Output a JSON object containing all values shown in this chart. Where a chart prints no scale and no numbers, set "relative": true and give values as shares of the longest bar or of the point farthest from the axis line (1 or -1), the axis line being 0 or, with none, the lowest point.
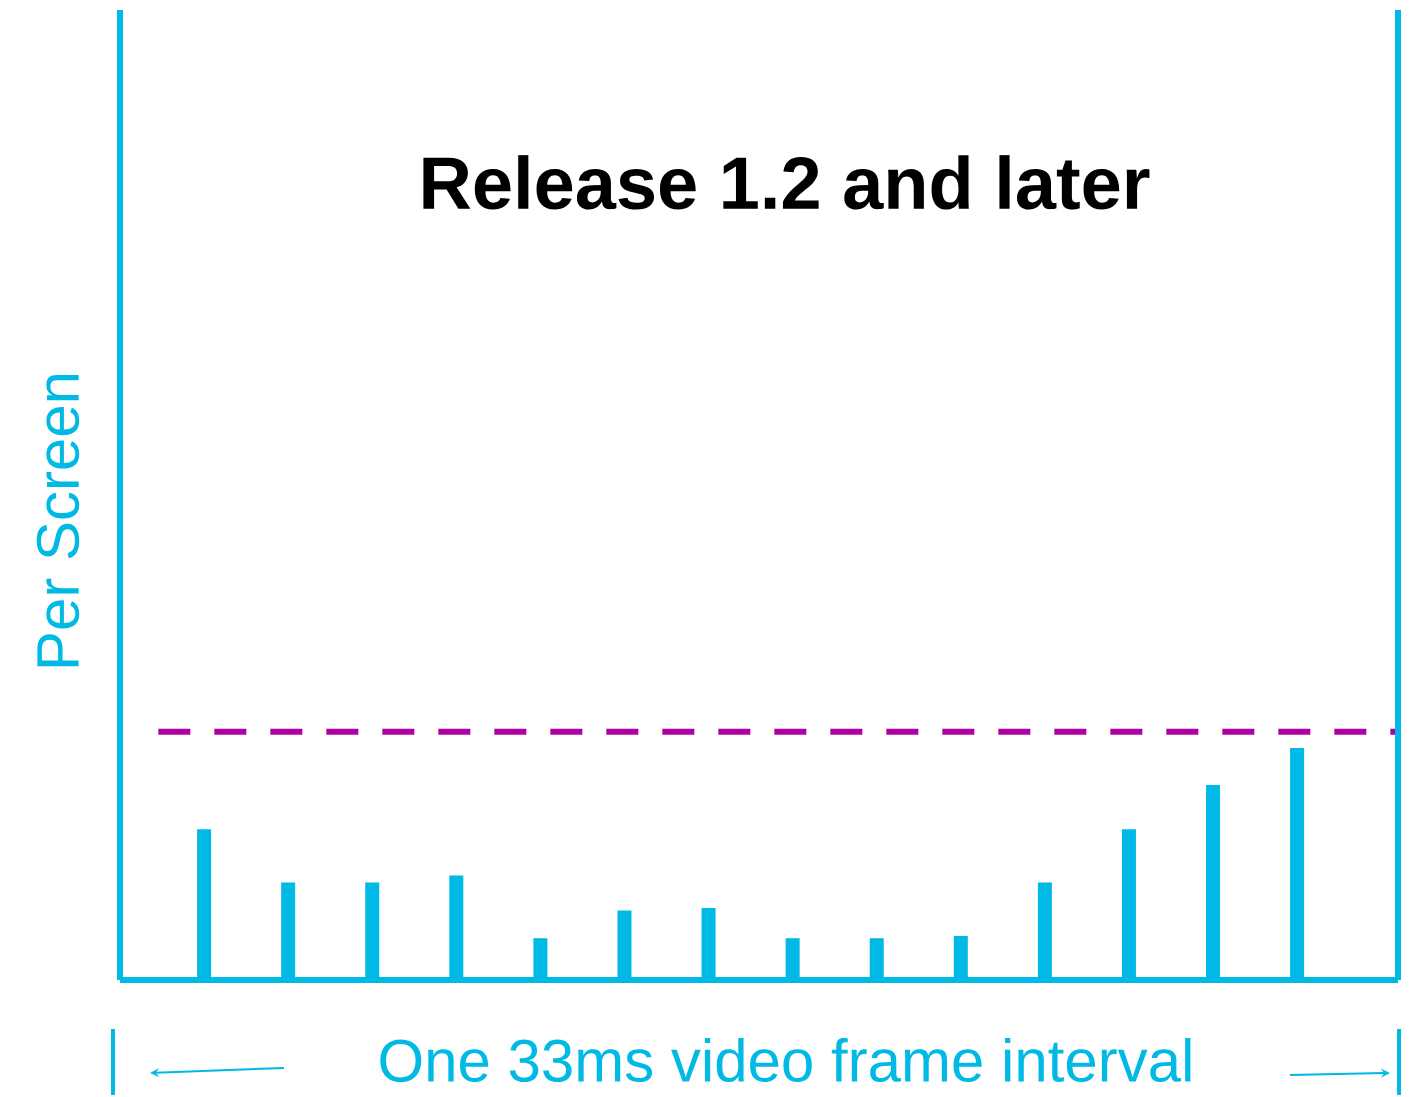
{
  "chart_data": {
    "type": "bar",
    "title": "Release 1.2 and later",
    "xlabel": "One 33ms video frame interval",
    "ylabel": "Per Screen",
    "relative": true,
    "color": "#00b9e4",
    "categories": [
      null,
      null,
      null,
      null,
      null,
      null,
      null,
      null,
      null,
      null,
      null,
      null,
      null,
      null
    ],
    "values": [
      0.65,
      0.42,
      0.42,
      0.45,
      0.18,
      0.3,
      0.31,
      0.18,
      0.18,
      0.19,
      0.42,
      0.65,
      0.84,
      1.0
    ],
    "ref_lines": [
      {
        "axis": "y",
        "value": 1.07,
        "color": "#b000a0",
        "line_style": "dashed"
      }
    ]
  }
}
